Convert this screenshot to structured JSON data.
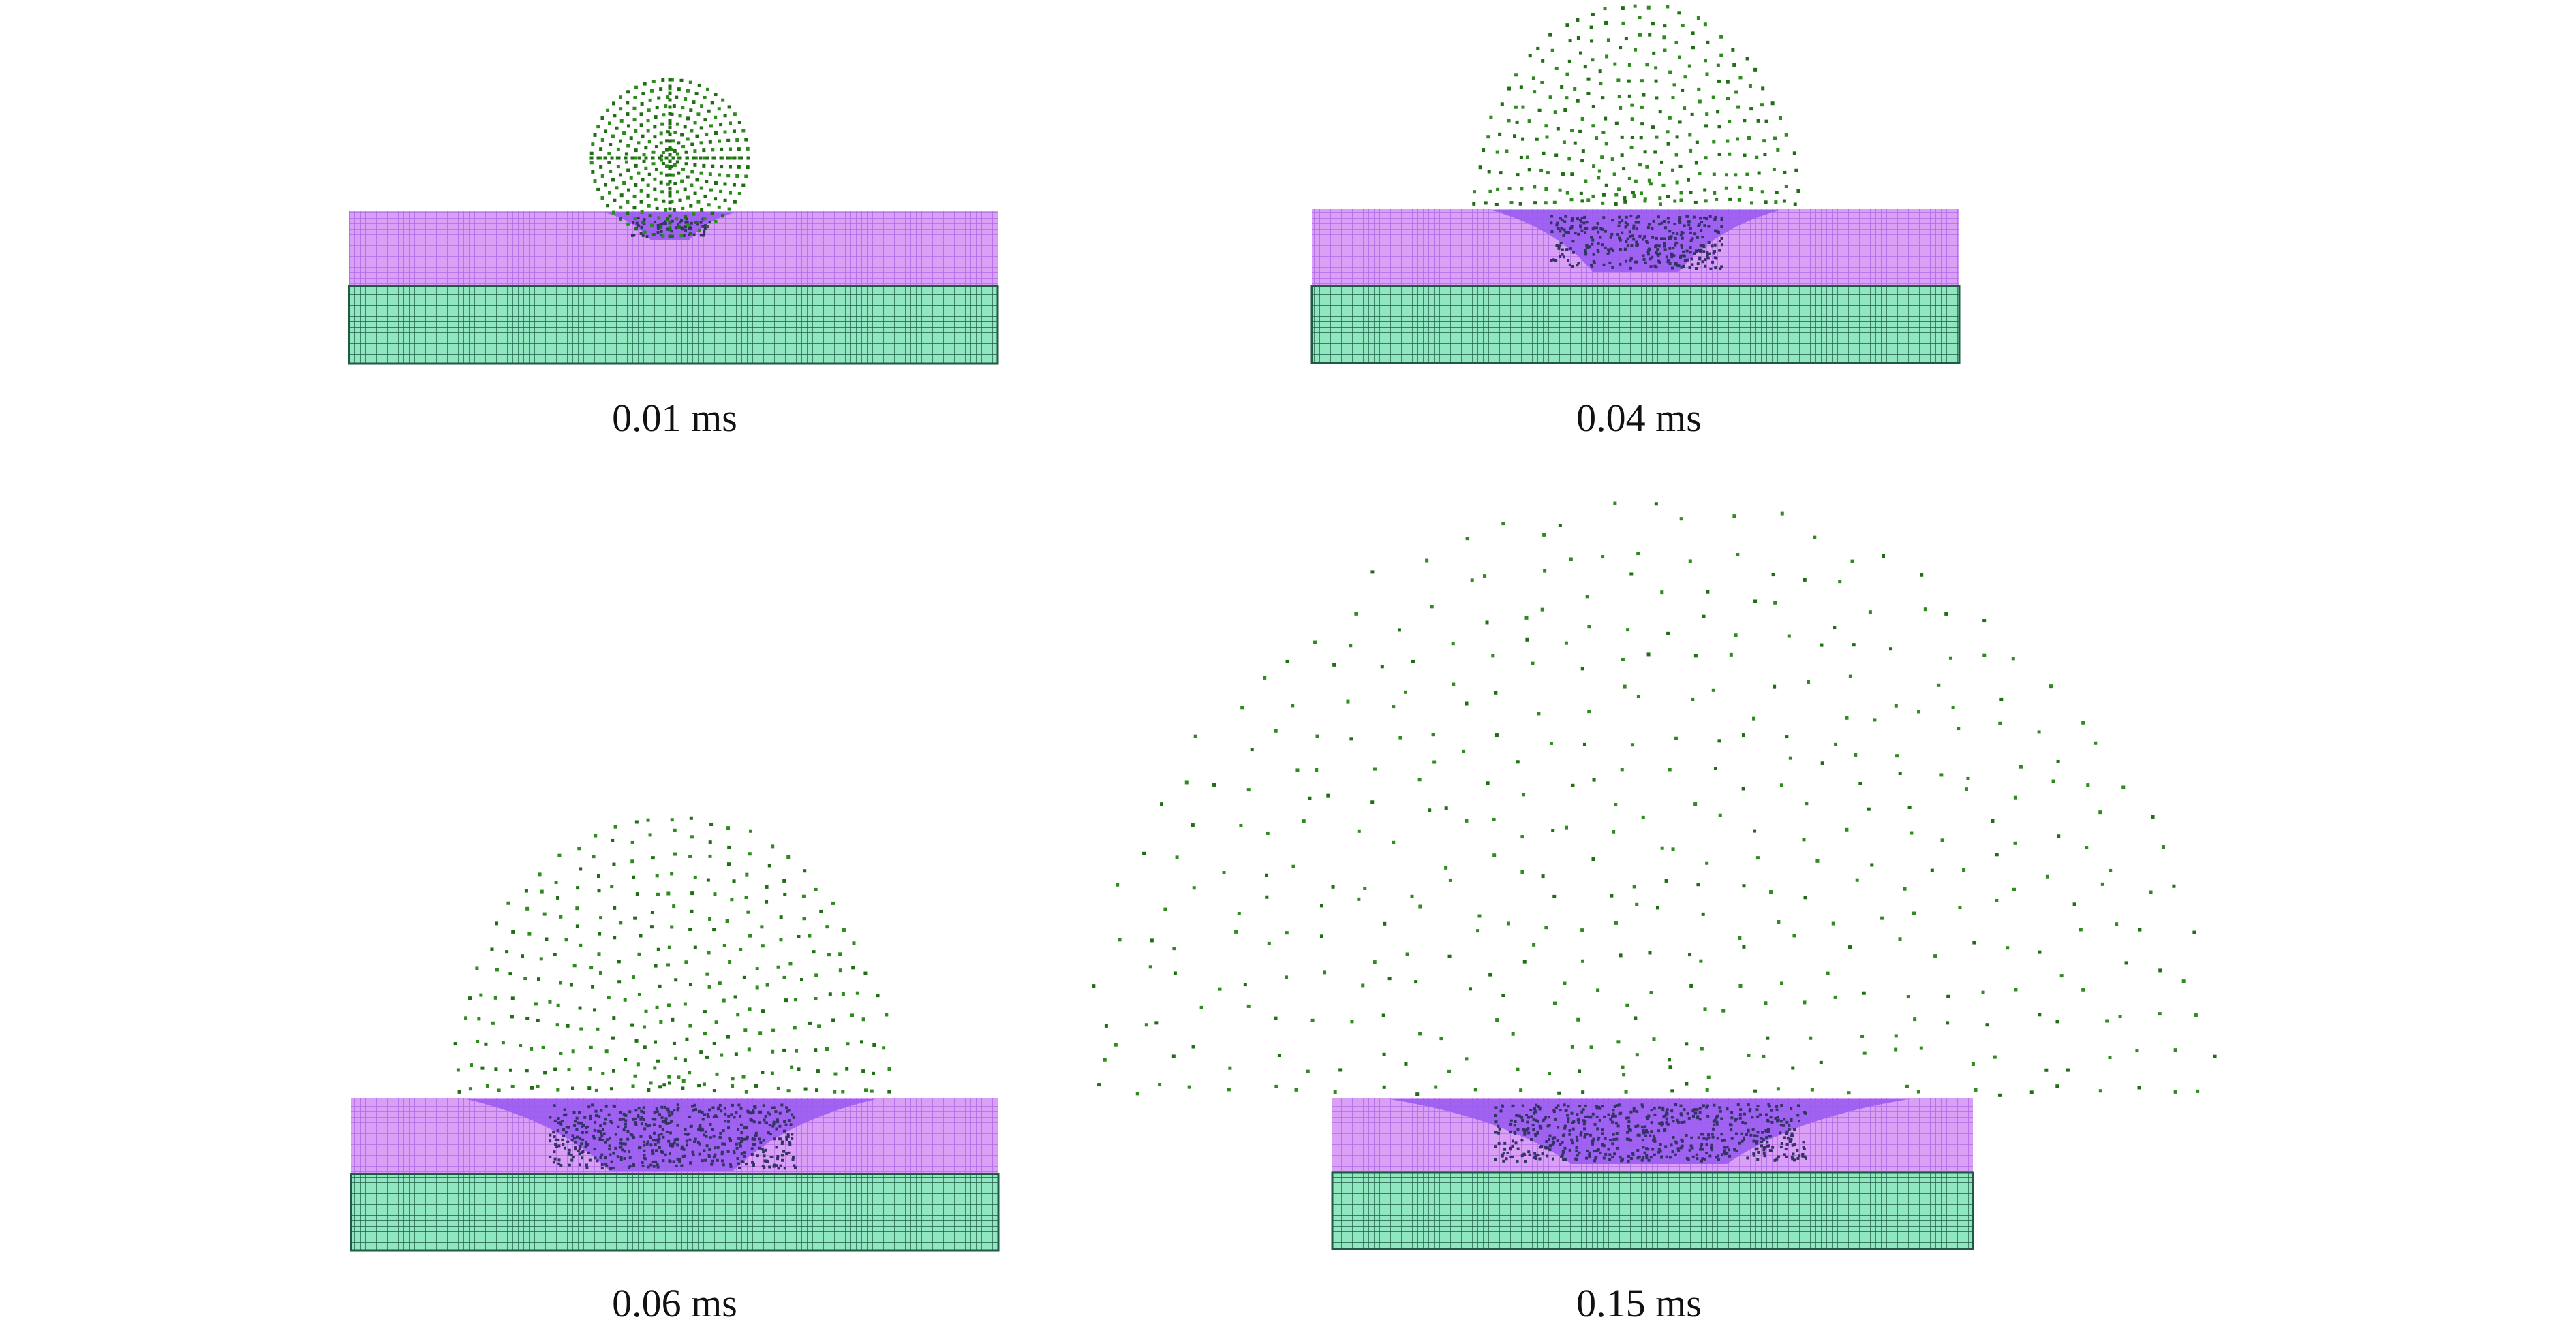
{
  "colors": {
    "background": "#ffffff",
    "particle": "#2e8b1e",
    "particle_dark": "#1f6e14",
    "coating_fill": "#d9a0f5",
    "coating_grid": "#b06ae8",
    "crater": "#9b5cf0",
    "substrate_fill": "#8fe6bf",
    "substrate_grid": "#1f5a45"
  },
  "panels": [
    {
      "id": "t001",
      "caption": "0.01 ms",
      "stage": "droplet"
    },
    {
      "id": "t004",
      "caption": "0.04 ms",
      "stage": "dome-dense"
    },
    {
      "id": "t006",
      "caption": "0.06 ms",
      "stage": "dome-spread"
    },
    {
      "id": "t015",
      "caption": "0.15 ms",
      "stage": "dome-wide"
    }
  ]
}
